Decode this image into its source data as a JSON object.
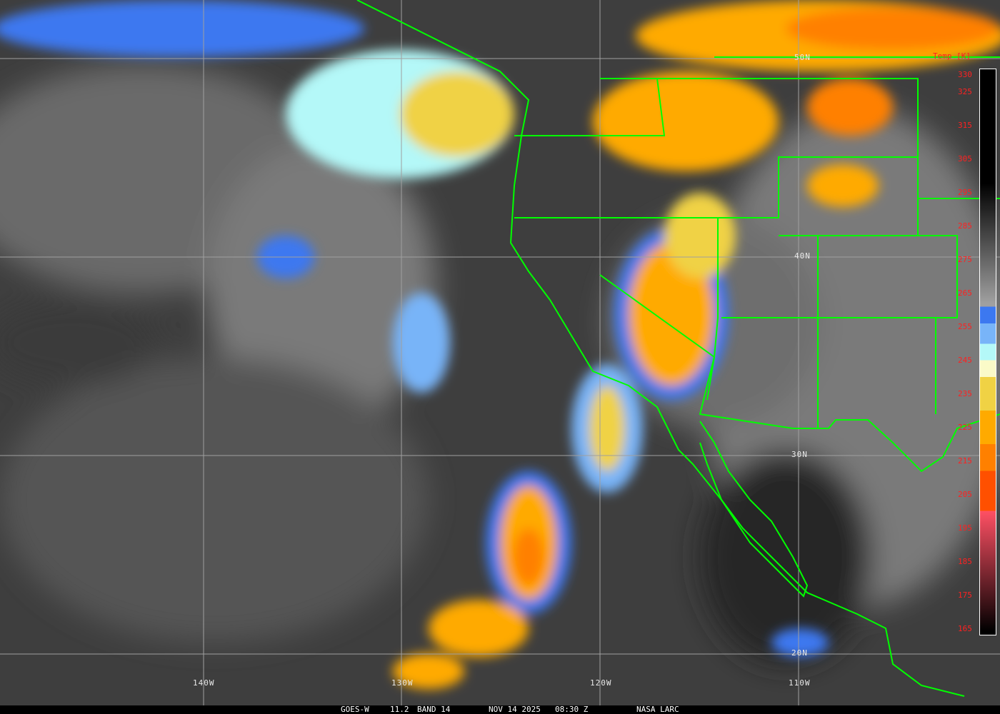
{
  "image": {
    "satellite": "GOES-W",
    "channel": "11.2",
    "band": "BAND 14",
    "date": "NOV 14 2025",
    "time": "08:30 Z",
    "source": "NASA LARC"
  },
  "grid": {
    "lat_labels": [
      "50N",
      "40N",
      "30N",
      "20N"
    ],
    "lon_labels": [
      "140W",
      "130W",
      "120W",
      "110W"
    ]
  },
  "colorbar": {
    "title": "Temp [K]",
    "ticks": [
      "330",
      "325",
      "315",
      "305",
      "295",
      "285",
      "275",
      "265",
      "255",
      "245",
      "235",
      "225",
      "215",
      "205",
      "195",
      "185",
      "175",
      "165"
    ],
    "range_k": [
      163,
      332
    ],
    "stops": [
      {
        "k": 332,
        "color": "#000000"
      },
      {
        "k": 298,
        "color": "#000000"
      },
      {
        "k": 262,
        "color": "#a0a0a0"
      },
      {
        "k": 261,
        "color": "#3c78f0"
      },
      {
        "k": 256,
        "color": "#78b4f8"
      },
      {
        "k": 250,
        "color": "#b4f8f8"
      },
      {
        "k": 245,
        "color": "#fafac8"
      },
      {
        "k": 240,
        "color": "#f0d244"
      },
      {
        "k": 230,
        "color": "#ffaa00"
      },
      {
        "k": 220,
        "color": "#ff8000"
      },
      {
        "k": 212,
        "color": "#ff5000"
      },
      {
        "k": 200,
        "color": "#ff5064"
      },
      {
        "k": 164,
        "color": "#000000"
      }
    ]
  },
  "colors": {
    "borders": "#00ff00",
    "grid": "#a0a0a0",
    "label": "#ff2020"
  }
}
